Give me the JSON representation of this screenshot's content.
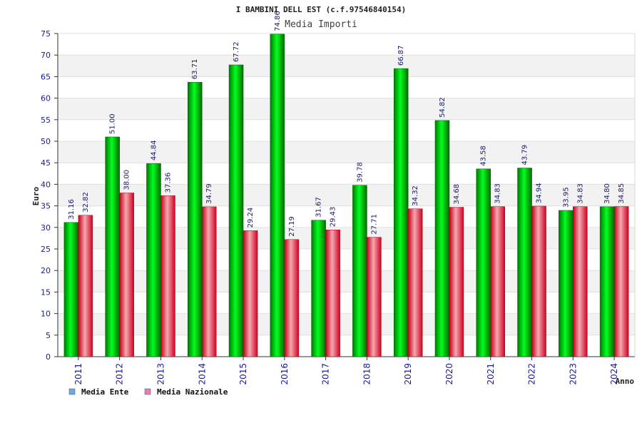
{
  "chart_data": {
    "type": "bar",
    "title": "I BAMBINI DELL EST (c.f.97546840154)",
    "subtitle": "Media Importi",
    "xlabel": "Anno",
    "ylabel": "Euro",
    "ylim": [
      0,
      75
    ],
    "ytick_step": 5,
    "grid": true,
    "legend_position": "bottom-left",
    "categories": [
      "2011",
      "2012",
      "2013",
      "2014",
      "2015",
      "2016",
      "2017",
      "2018",
      "2019",
      "2020",
      "2021",
      "2022",
      "2023",
      "2024"
    ],
    "series": [
      {
        "name": "Media Ente",
        "color": "#00c000",
        "legend_color": "#6aa8e8",
        "values": [
          31.16,
          51.0,
          44.84,
          63.71,
          67.72,
          74.86,
          31.67,
          39.78,
          66.87,
          54.82,
          43.58,
          43.79,
          33.95,
          34.8
        ],
        "labels": [
          "31.16",
          "51.00",
          "44.84",
          "63.71",
          "67.72",
          "74.86",
          "31.67",
          "39.78",
          "66.87",
          "54.82",
          "43.58",
          "43.79",
          "33.95",
          "34.80"
        ]
      },
      {
        "name": "Media Nazionale",
        "color": "#e02030",
        "legend_color": "#e080b0",
        "values": [
          32.82,
          38.0,
          37.36,
          34.79,
          29.24,
          27.19,
          29.43,
          27.71,
          34.32,
          34.68,
          34.83,
          34.94,
          34.83,
          34.85
        ],
        "labels": [
          "32.82",
          "38.00",
          "37.36",
          "34.79",
          "29.24",
          "27.19",
          "29.43",
          "27.71",
          "34.32",
          "34.68",
          "34.83",
          "34.94",
          "34.83",
          "34.85"
        ]
      }
    ]
  }
}
